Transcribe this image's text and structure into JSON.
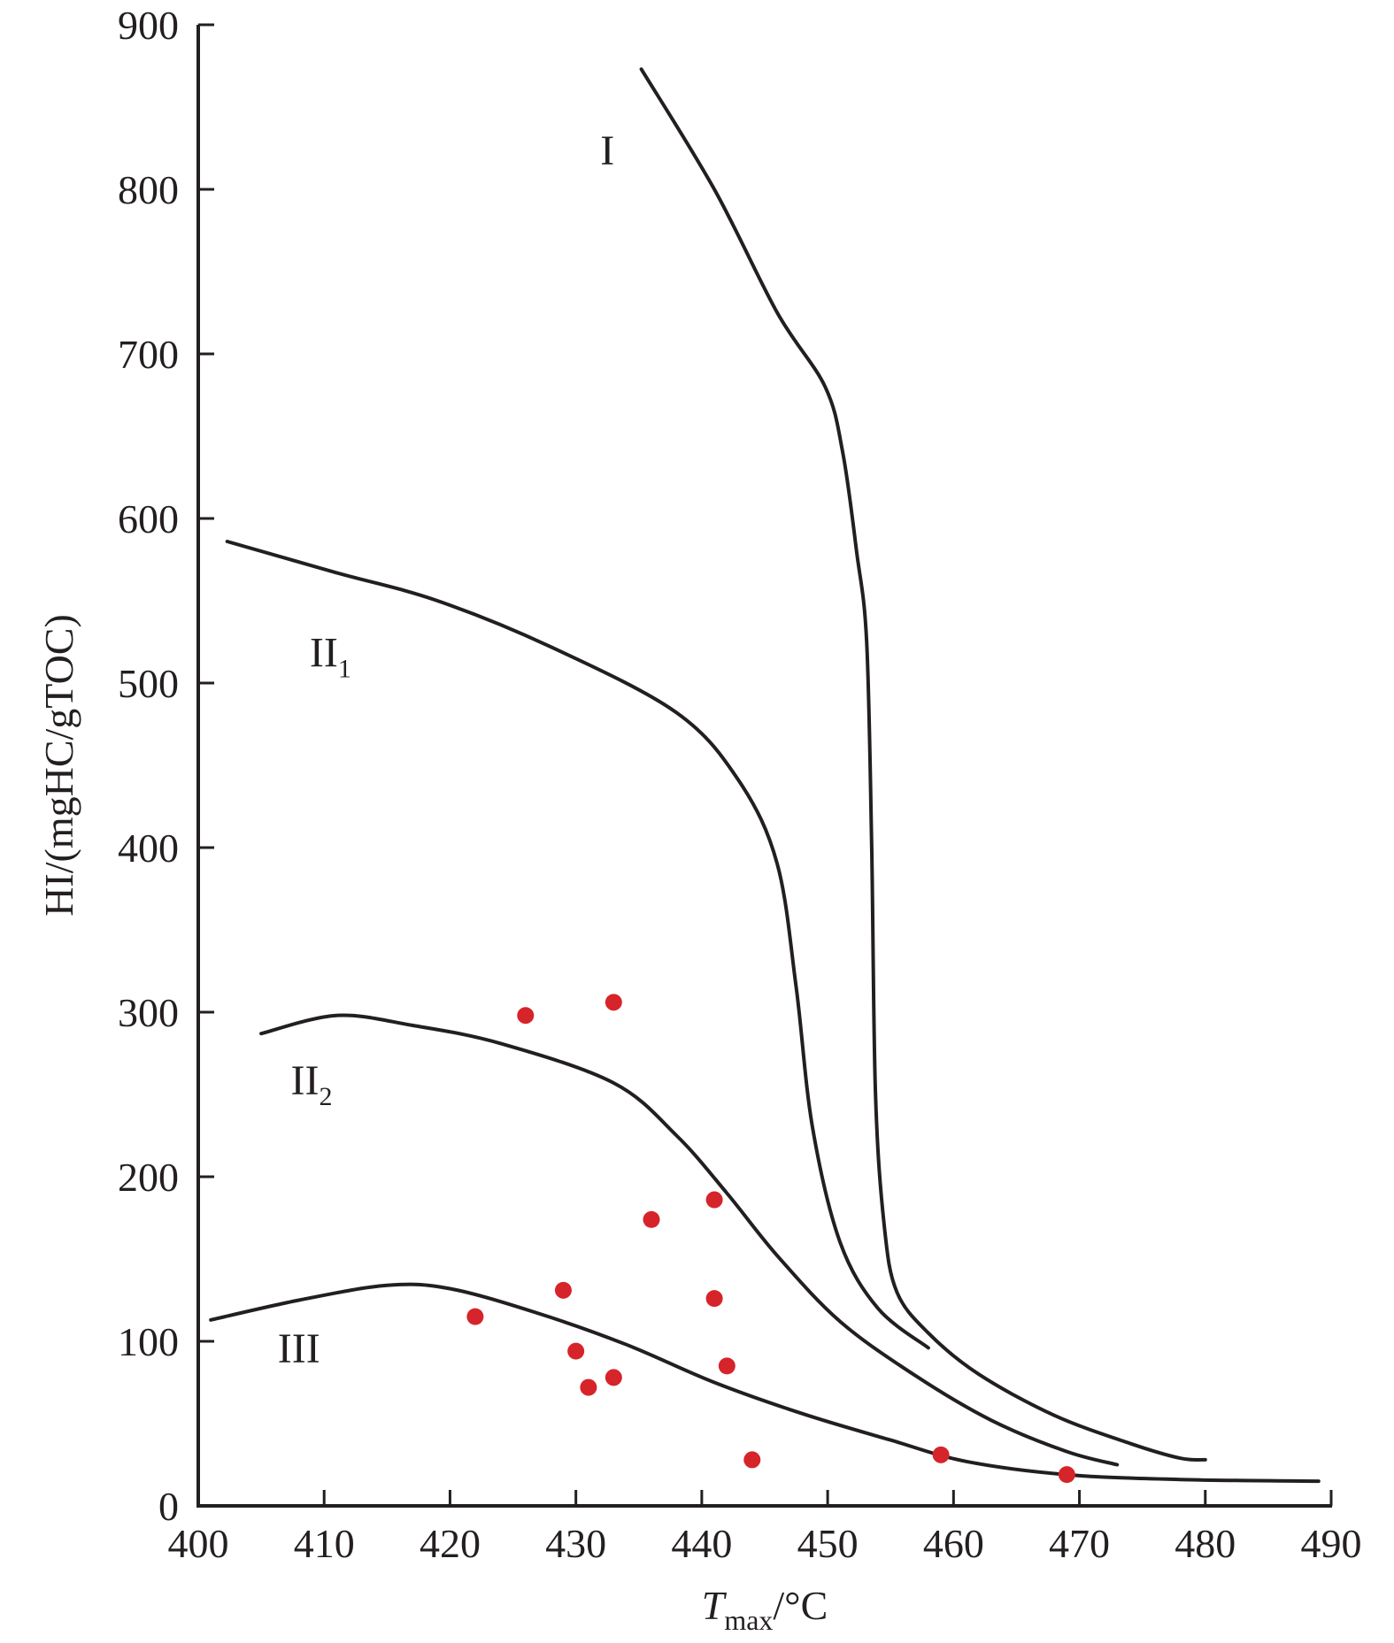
{
  "chart_data": {
    "type": "scatter",
    "xlabel": {
      "main": "T",
      "subscript": "max",
      "unit": "/°C"
    },
    "ylabel": "HI/(mgHC/gTOC)",
    "xlim": [
      400,
      490
    ],
    "ylim": [
      0,
      900
    ],
    "xticks": [
      400,
      410,
      420,
      430,
      440,
      450,
      460,
      470,
      480,
      490
    ],
    "yticks": [
      0,
      100,
      200,
      300,
      400,
      500,
      600,
      700,
      800,
      900
    ],
    "grid": false,
    "points_color": "#d6242b",
    "line_color": "#231f20",
    "boundary_curves": [
      {
        "label": "I",
        "sub": "",
        "points": [
          [
            435.2,
            873
          ],
          [
            441,
            800
          ],
          [
            446,
            725
          ],
          [
            449.8,
            680
          ],
          [
            451.2,
            640
          ],
          [
            452.3,
            580
          ],
          [
            453.1,
            525
          ],
          [
            453.5,
            400
          ],
          [
            453.8,
            250
          ],
          [
            454.5,
            170
          ],
          [
            455.5,
            130
          ],
          [
            458,
            105
          ],
          [
            462,
            80
          ],
          [
            468,
            55
          ],
          [
            474,
            38
          ],
          [
            478,
            29
          ],
          [
            480,
            28
          ]
        ]
      },
      {
        "label": "II",
        "sub": "1",
        "points": [
          [
            402.3,
            586
          ],
          [
            411,
            567
          ],
          [
            419,
            550
          ],
          [
            428,
            522
          ],
          [
            438,
            482
          ],
          [
            443,
            440
          ],
          [
            446,
            390
          ],
          [
            447.5,
            315
          ],
          [
            448.8,
            230
          ],
          [
            451,
            160
          ],
          [
            454,
            120
          ],
          [
            458,
            96
          ]
        ]
      },
      {
        "label": "II",
        "sub": "2",
        "points": [
          [
            405,
            287
          ],
          [
            411,
            298
          ],
          [
            417,
            292
          ],
          [
            424,
            281
          ],
          [
            433,
            257
          ],
          [
            438,
            225
          ],
          [
            442,
            190
          ],
          [
            446,
            152
          ],
          [
            451,
            112
          ],
          [
            457,
            79
          ],
          [
            463,
            52
          ],
          [
            469,
            33
          ],
          [
            473,
            25
          ]
        ]
      },
      {
        "label": "III",
        "sub": "",
        "points": [
          [
            401,
            113
          ],
          [
            408,
            125
          ],
          [
            415,
            134
          ],
          [
            420,
            132
          ],
          [
            427,
            117
          ],
          [
            434,
            98
          ],
          [
            441,
            75
          ],
          [
            448,
            56
          ],
          [
            455,
            40
          ],
          [
            461,
            27
          ],
          [
            469,
            19
          ],
          [
            478,
            16
          ],
          [
            489,
            15
          ]
        ]
      }
    ],
    "curve_labels": [
      {
        "text": "I",
        "sub": "",
        "x": 432.5,
        "y": 815
      },
      {
        "text": "II",
        "sub": "1",
        "x": 410.5,
        "y": 510
      },
      {
        "text": "II",
        "sub": "2",
        "x": 409,
        "y": 250
      },
      {
        "text": "III",
        "sub": "",
        "x": 408,
        "y": 87
      }
    ],
    "points": [
      {
        "x": 426,
        "y": 298
      },
      {
        "x": 433,
        "y": 306
      },
      {
        "x": 441,
        "y": 186
      },
      {
        "x": 436,
        "y": 174
      },
      {
        "x": 429,
        "y": 131
      },
      {
        "x": 441,
        "y": 126
      },
      {
        "x": 422,
        "y": 115
      },
      {
        "x": 430,
        "y": 94
      },
      {
        "x": 442,
        "y": 85
      },
      {
        "x": 433,
        "y": 78
      },
      {
        "x": 431,
        "y": 72
      },
      {
        "x": 444,
        "y": 28
      },
      {
        "x": 459,
        "y": 31
      },
      {
        "x": 469,
        "y": 19
      }
    ]
  }
}
